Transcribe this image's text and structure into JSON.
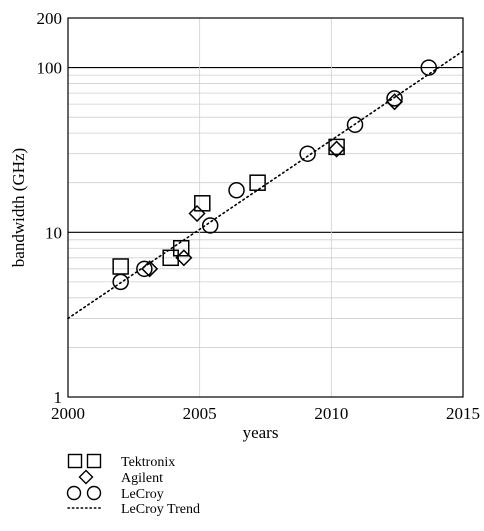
{
  "chart_data": {
    "type": "scatter",
    "xlabel": "years",
    "ylabel": "bandwidth (GHz)",
    "xlim": [
      2000,
      2015
    ],
    "ylim": [
      1,
      200
    ],
    "yscale": "log",
    "x_ticks": [
      "2000",
      "2005",
      "2010",
      "2015"
    ],
    "y_ticks": [
      "1",
      "10",
      "100",
      "200"
    ],
    "grid": true,
    "legend_position": "bottom-left, below plot",
    "series": [
      {
        "name": "Tektronix",
        "marker": "square",
        "points": [
          {
            "x": 2002.0,
            "y": 6.2
          },
          {
            "x": 2003.9,
            "y": 7.0
          },
          {
            "x": 2004.3,
            "y": 8.0
          },
          {
            "x": 2005.1,
            "y": 15.0
          },
          {
            "x": 2007.2,
            "y": 20.0
          },
          {
            "x": 2010.2,
            "y": 33.0
          }
        ]
      },
      {
        "name": "Agilent",
        "marker": "diamond",
        "points": [
          {
            "x": 2003.1,
            "y": 6.0
          },
          {
            "x": 2004.4,
            "y": 7.0
          },
          {
            "x": 2004.9,
            "y": 13.0
          },
          {
            "x": 2010.2,
            "y": 32.0
          },
          {
            "x": 2012.4,
            "y": 62.0
          }
        ]
      },
      {
        "name": "LeCroy",
        "marker": "circle",
        "points": [
          {
            "x": 2002.0,
            "y": 5.0
          },
          {
            "x": 2002.9,
            "y": 6.0
          },
          {
            "x": 2005.4,
            "y": 11.0
          },
          {
            "x": 2006.4,
            "y": 18.0
          },
          {
            "x": 2009.1,
            "y": 30.0
          },
          {
            "x": 2010.9,
            "y": 45.0
          },
          {
            "x": 2012.4,
            "y": 65.0
          },
          {
            "x": 2013.7,
            "y": 100.0
          }
        ]
      },
      {
        "name": "LeCroy Trend",
        "marker": "dotted-line",
        "points": [
          {
            "x": 2000.0,
            "y": 3.0
          },
          {
            "x": 2015.0,
            "y": 126.0
          }
        ]
      }
    ]
  }
}
